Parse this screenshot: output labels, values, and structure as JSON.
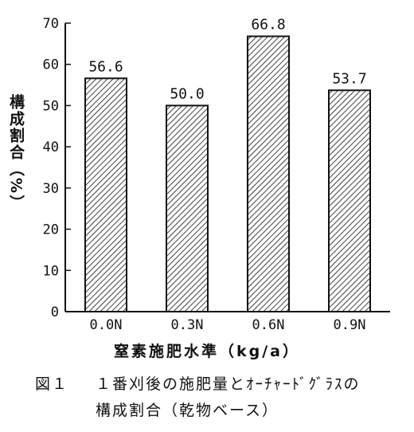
{
  "chart_data": {
    "type": "bar",
    "categories": [
      "0.0N",
      "0.3N",
      "0.6N",
      "0.9N"
    ],
    "values": [
      56.6,
      50.0,
      66.8,
      53.7
    ],
    "value_labels": [
      "56.6",
      "50.0",
      "66.8",
      "53.7"
    ],
    "ylim": [
      0,
      70
    ],
    "yticks": [
      0,
      10,
      20,
      30,
      40,
      50,
      60,
      70
    ],
    "ylabel": "構成割合（%）",
    "xlabel": "窒素施肥水準（kg/a）",
    "grid": false,
    "bar_fill": "diagonal-hatch",
    "colors": {
      "bar_line": "#111111",
      "axis": "#111111",
      "background": "#ffffff"
    }
  },
  "caption": {
    "figure_number": "図１",
    "line1": "１番刈後の施肥量とｵｰﾁｬｰﾄﾞｸﾞﾗｽの",
    "line2": "構成割合（乾物ベース）"
  }
}
